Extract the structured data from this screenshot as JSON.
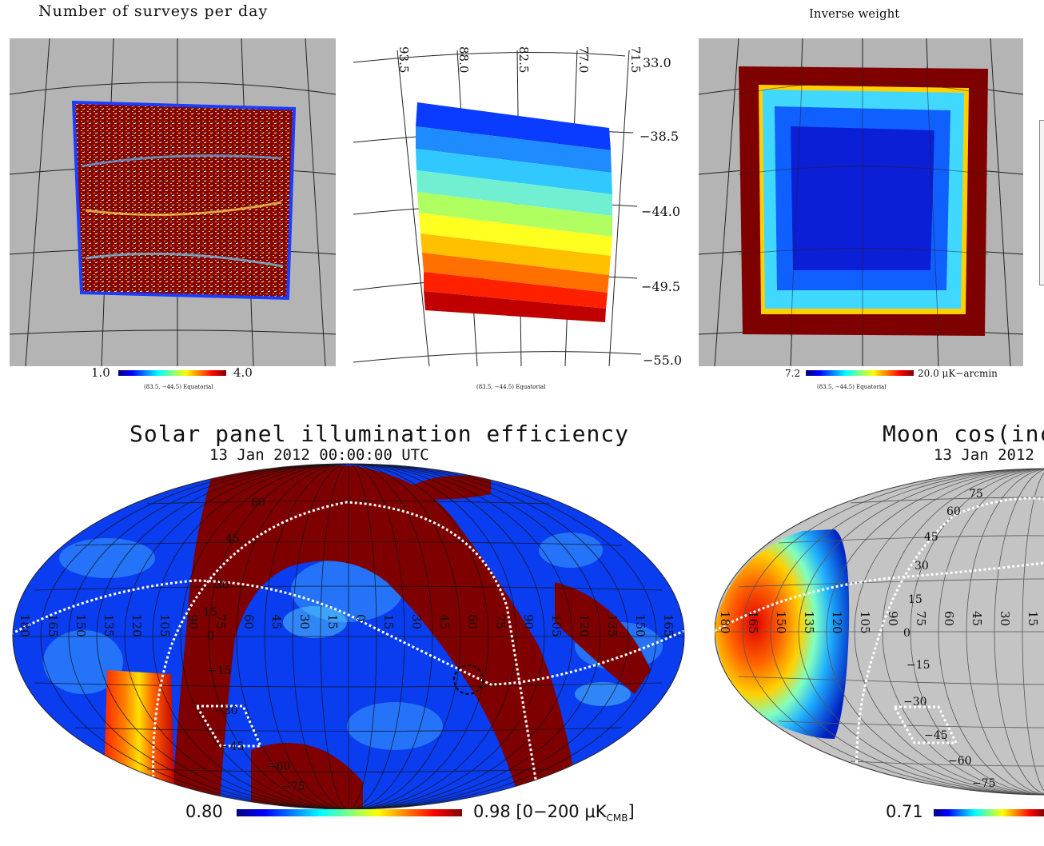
{
  "panels": {
    "surveys": {
      "title": "Number of surveys per day",
      "cbar_min": "1.0",
      "cbar_max": "4.0",
      "note": "(83.5, −44.5) Equatorial"
    },
    "ra_map": {
      "ra_labels": [
        "93.5",
        "88.0",
        "82.5",
        "77.0",
        "71.5"
      ],
      "dec_labels": [
        "33.0",
        "−38.5",
        "−44.0",
        "−49.5",
        "−55.0"
      ],
      "note": "(83.5, −44.5) Equatorial"
    },
    "inverse_weight": {
      "title": "Inverse weight",
      "cbar_min": "7.2",
      "cbar_max": "20.0 μK−arcmin",
      "note": "(83.5, −44.5) Equatorial"
    },
    "solar": {
      "title": "Solar panel illumination efficiency",
      "subtitle": "13 Jan 2012 00:00:00 UTC",
      "cbar_min": "0.80",
      "cbar_max": "0.98 [0−200 μK",
      "cbar_unit_sub": "CMB",
      "cbar_close": "]",
      "lon_labels": [
        "180",
        "165",
        "150",
        "135",
        "120",
        "105",
        "90",
        "75",
        "60",
        "45",
        "30",
        "15",
        "0",
        "15",
        "30",
        "45",
        "60",
        "75",
        "90",
        "105",
        "120",
        "135",
        "150",
        "165"
      ],
      "lat_labels": [
        "60",
        "45",
        "30",
        "15",
        "0",
        "−15",
        "−30",
        "−45",
        "−60",
        "−75"
      ]
    },
    "moon": {
      "title": "Moon cos(inc",
      "subtitle": "13 Jan 2012",
      "cbar_min": "0.71",
      "lon_labels": [
        "180",
        "165",
        "150",
        "135",
        "120",
        "105",
        "90",
        "75",
        "60",
        "45",
        "30",
        "15"
      ],
      "lat_labels": [
        "75",
        "60",
        "45",
        "30",
        "15",
        "0",
        "−15",
        "−30",
        "−45",
        "−60",
        "−75"
      ]
    }
  },
  "colors": {
    "background": "#ffffff",
    "map_gray": "#b4b4b4",
    "dark_red": "#7f0000",
    "deep_blue": "#0a1fd6"
  }
}
